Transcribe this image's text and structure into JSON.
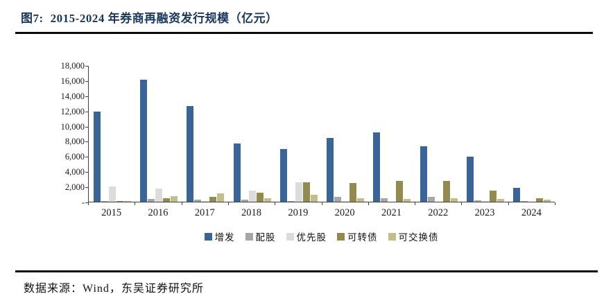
{
  "figure": {
    "number": "图7:",
    "title": "2015-2024 年券商再融资发行规模（亿元）",
    "source": "数据来源：Wind，东吴证券研究所",
    "accent_color": "#17375E"
  },
  "chart_data": {
    "type": "bar",
    "title": "2015-2024 年券商再融资发行规模（亿元）",
    "unit": "亿元",
    "categories": [
      "2015",
      "2016",
      "2017",
      "2018",
      "2019",
      "2020",
      "2021",
      "2022",
      "2023",
      "2024"
    ],
    "series": [
      {
        "name": "增发",
        "color": "#3A6598",
        "values": [
          11900,
          16100,
          12600,
          7700,
          6900,
          8400,
          9100,
          7300,
          5900,
          1800
        ]
      },
      {
        "name": "配股",
        "color": "#A6A6A6",
        "values": [
          50,
          350,
          250,
          250,
          130,
          600,
          500,
          600,
          180,
          40
        ]
      },
      {
        "name": "优先股",
        "color": "#DCDCDC",
        "values": [
          2050,
          1700,
          100,
          1450,
          2600,
          100,
          0,
          0,
          60,
          0
        ]
      },
      {
        "name": "可转债",
        "color": "#938B4D",
        "values": [
          100,
          450,
          600,
          1200,
          2550,
          2500,
          2700,
          2750,
          1500,
          500
        ]
      },
      {
        "name": "可交换债",
        "color": "#C5BD88",
        "values": [
          80,
          700,
          1100,
          500,
          900,
          500,
          400,
          500,
          400,
          300
        ]
      }
    ],
    "ylim": [
      0,
      18000
    ],
    "y_tick_step": 2000,
    "y_tick_labels_top_to_bottom": [
      "18,000",
      "16,000",
      "14,000",
      "12,000",
      "10,000",
      "8,000",
      "6,000",
      "4,000",
      "2,000",
      "-"
    ],
    "xlabel": "",
    "ylabel": "",
    "grid": false,
    "legend_position": "bottom"
  }
}
